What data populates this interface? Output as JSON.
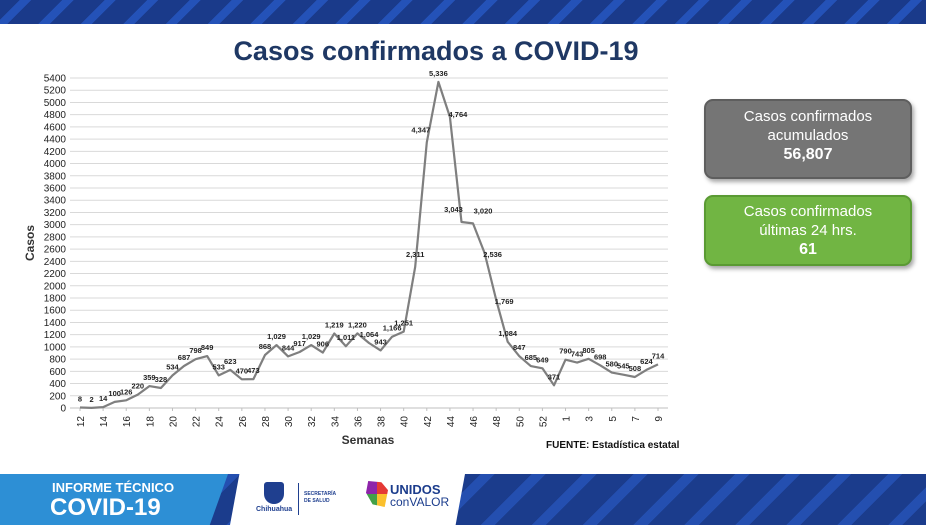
{
  "header": {
    "title": "Casos confirmados a COVID-19"
  },
  "chart_data": {
    "type": "line",
    "title": "Casos confirmados a COVID-19",
    "xlabel": "Semanas",
    "ylabel": "Casos",
    "ylim": [
      0,
      5400
    ],
    "y_ticks": [
      0,
      200,
      400,
      600,
      800,
      1000,
      1200,
      1400,
      1600,
      1800,
      2000,
      2200,
      2400,
      2600,
      2800,
      3000,
      3200,
      3400,
      3600,
      3800,
      4000,
      4200,
      4400,
      4600,
      4800,
      5000,
      5200,
      5400
    ],
    "x_tick_labels": [
      "12",
      "14",
      "16",
      "18",
      "20",
      "22",
      "24",
      "26",
      "28",
      "30",
      "32",
      "34",
      "36",
      "38",
      "40",
      "42",
      "44",
      "46",
      "48",
      "50",
      "52",
      "1",
      "3",
      "5",
      "7",
      "9"
    ],
    "grid": true,
    "line_color": "#7f7f7f",
    "x": [
      "12",
      "13",
      "14",
      "15",
      "16",
      "17",
      "18",
      "19",
      "20",
      "21",
      "22",
      "23",
      "24",
      "25",
      "26",
      "27",
      "28",
      "29",
      "30",
      "31",
      "32",
      "33",
      "34",
      "35",
      "36",
      "37",
      "38",
      "39",
      "40",
      "41",
      "42",
      "43",
      "44",
      "45",
      "46",
      "47",
      "48",
      "49",
      "50",
      "51",
      "52",
      "53",
      "1",
      "2",
      "3",
      "4",
      "5",
      "6",
      "7",
      "8",
      "9"
    ],
    "values": [
      8,
      2,
      14,
      100,
      126,
      220,
      359,
      328,
      534,
      687,
      798,
      849,
      533,
      623,
      470,
      473,
      868,
      1029,
      844,
      917,
      1029,
      906,
      1219,
      1011,
      1220,
      1064,
      943,
      1166,
      1251,
      2311,
      4347,
      5336,
      4764,
      3043,
      3020,
      2536,
      1769,
      1084,
      847,
      685,
      649,
      371,
      790,
      743,
      805,
      698,
      580,
      545,
      508,
      624,
      714
    ],
    "data_labels": [
      "8",
      "2",
      "14",
      "100",
      "126",
      "220",
      "359",
      "328",
      "534",
      "687",
      "798",
      "849",
      "533",
      "623",
      "470",
      "473",
      "868",
      "1,029",
      "844",
      "917",
      "1,029",
      "906",
      "1,219",
      "1,011",
      "1,220",
      "1,064",
      "943",
      "1,166",
      "1,251",
      "2,311",
      "4,347",
      "5,336",
      "4,764",
      "3,043",
      "3,020",
      "2,536",
      "1,769",
      "1,084",
      "847",
      "685",
      "649",
      "371",
      "790",
      "743",
      "805",
      "698",
      "580",
      "545",
      "508",
      "624",
      "714"
    ]
  },
  "kpis": {
    "acumulados_label": "Casos confirmados acumulados",
    "acumulados_value": "56,807",
    "ultimas_label": "Casos confirmados últimas 24 hrs.",
    "ultimas_value": "61"
  },
  "source": "FUENTE: Estadística estatal",
  "footer": {
    "report_line1": "INFORME TÉCNICO",
    "report_line2": "COVID-19",
    "org_name": "Chihuahua",
    "dept_line": "SECRETARÍA DE SALUD",
    "slogan_line1": "UNIDOS",
    "slogan_line2": "conVALOR"
  }
}
